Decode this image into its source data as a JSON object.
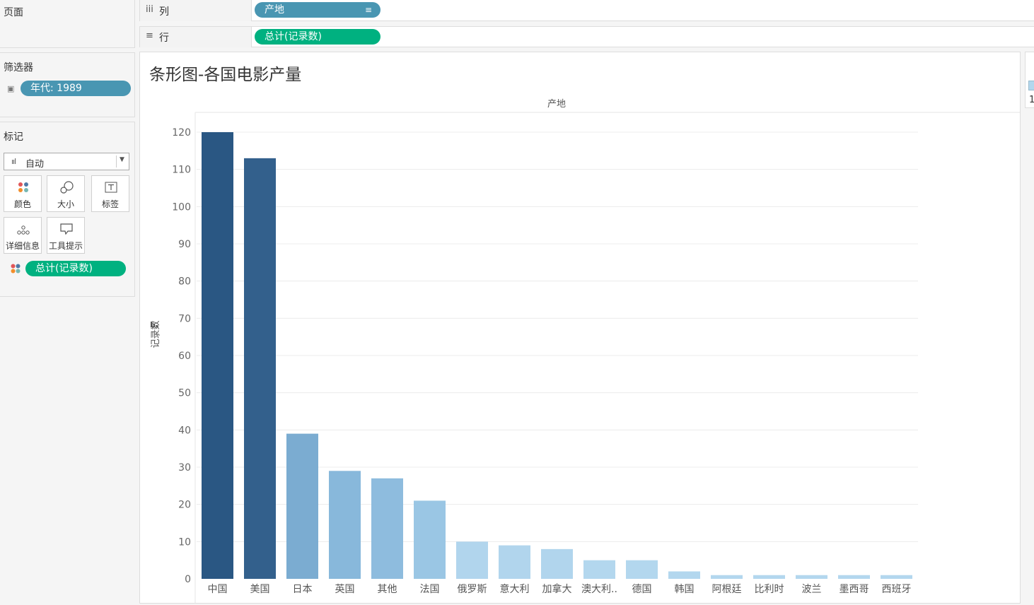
{
  "pages": {
    "title": "页面"
  },
  "shelves": {
    "columns": {
      "label": "列",
      "pill": "产地"
    },
    "rows": {
      "label": "行",
      "pill": "总计(记录数)"
    }
  },
  "filters": {
    "title": "筛选器",
    "pill": "年代: 1989"
  },
  "marks": {
    "title": "标记",
    "type_select": "自动",
    "buttons": {
      "color": "颜色",
      "size": "大小",
      "label": "标签",
      "detail": "详细信息",
      "tooltip": "工具提示"
    },
    "pill": "总计(记录数)"
  },
  "legend": {
    "partial_value": "1"
  },
  "colors": {
    "blue_pill": "#4996b2",
    "green_pill": "#00b180",
    "bar_dark": "#2a5783",
    "bar_light": "#b3d7ee"
  },
  "chart_data": {
    "type": "bar",
    "title": "条形图-各国电影产量",
    "column_header": "产地",
    "ylabel": "记录数",
    "ylim": [
      0,
      120
    ],
    "yticks": [
      0,
      10,
      20,
      30,
      40,
      50,
      60,
      70,
      80,
      90,
      100,
      110,
      120
    ],
    "categories": [
      "中国",
      "美国",
      "日本",
      "英国",
      "其他",
      "法国",
      "俄罗斯",
      "意大利",
      "加拿大",
      "澳大利..",
      "德国",
      "韩国",
      "阿根廷",
      "比利时",
      "波兰",
      "墨西哥",
      "西班牙"
    ],
    "values": [
      120,
      113,
      39,
      29,
      27,
      21,
      10,
      9,
      8,
      5,
      5,
      2,
      1,
      1,
      1,
      1,
      1
    ],
    "bar_colors": [
      "#2a5783",
      "#33608c",
      "#7bacd1",
      "#88b8db",
      "#8ebcde",
      "#9ac6e4",
      "#b1d5ed",
      "#b1d5ed",
      "#b1d5ed",
      "#b3d7ee",
      "#b3d7ee",
      "#b3d7ee",
      "#b3d7ee",
      "#b3d7ee",
      "#b3d7ee",
      "#b3d7ee",
      "#b3d7ee"
    ],
    "grid": true
  }
}
